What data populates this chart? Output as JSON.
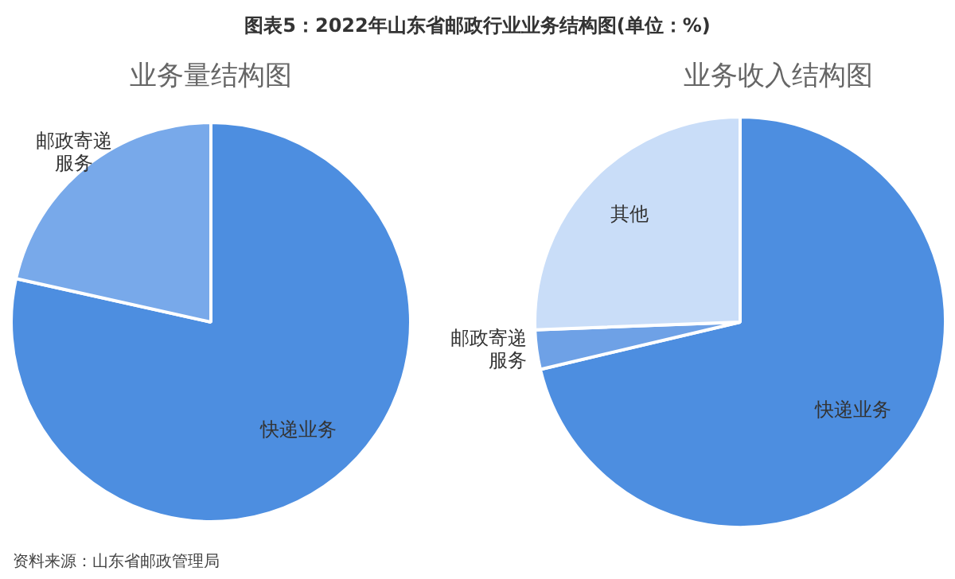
{
  "chart_data": [
    {
      "type": "pie",
      "title": "图表5：2022年山东省邮政行业业务结构图(单位：%)",
      "subtitle": "业务量结构图",
      "categories": [
        "快递业务",
        "邮政寄递服务"
      ],
      "values": [
        78.5,
        21.5
      ],
      "colors": [
        "#4d8ee0",
        "#78a9ea"
      ],
      "legend": false,
      "annotations": [
        "资料来源：山东省邮政管理局"
      ]
    },
    {
      "type": "pie",
      "subtitle": "业务收入结构图",
      "categories": [
        "快递业务",
        "邮政寄递服务",
        "其他"
      ],
      "values": [
        71.3,
        3.1,
        25.6
      ],
      "colors": [
        "#4d8ee0",
        "#6ea1e6",
        "#c9ddf8"
      ],
      "legend": false
    }
  ]
}
